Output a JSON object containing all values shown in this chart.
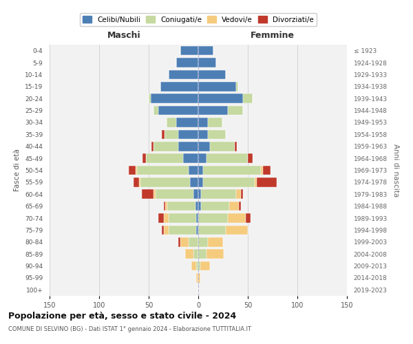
{
  "age_groups": [
    "0-4",
    "5-9",
    "10-14",
    "15-19",
    "20-24",
    "25-29",
    "30-34",
    "35-39",
    "40-44",
    "45-49",
    "50-54",
    "55-59",
    "60-64",
    "65-69",
    "70-74",
    "75-79",
    "80-84",
    "85-89",
    "90-94",
    "95-99",
    "100+"
  ],
  "birth_years": [
    "2019-2023",
    "2014-2018",
    "2009-2013",
    "2004-2008",
    "1999-2003",
    "1994-1998",
    "1989-1993",
    "1984-1988",
    "1979-1983",
    "1974-1978",
    "1969-1973",
    "1964-1968",
    "1959-1963",
    "1954-1958",
    "1949-1953",
    "1944-1948",
    "1939-1943",
    "1934-1938",
    "1929-1933",
    "1924-1928",
    "≤ 1923"
  ],
  "male": {
    "celibi": [
      18,
      22,
      30,
      38,
      48,
      40,
      22,
      20,
      20,
      15,
      10,
      8,
      5,
      3,
      2,
      2,
      0,
      0,
      0,
      0,
      0
    ],
    "coniugati": [
      0,
      0,
      0,
      0,
      2,
      5,
      10,
      14,
      25,
      38,
      52,
      50,
      38,
      28,
      28,
      28,
      10,
      5,
      2,
      0,
      0
    ],
    "vedovi": [
      0,
      0,
      0,
      0,
      0,
      0,
      0,
      0,
      0,
      0,
      1,
      2,
      2,
      2,
      5,
      5,
      8,
      8,
      5,
      2,
      0
    ],
    "divorziati": [
      0,
      0,
      0,
      0,
      0,
      0,
      0,
      3,
      2,
      3,
      7,
      5,
      12,
      2,
      5,
      2,
      2,
      0,
      0,
      0,
      0
    ]
  },
  "female": {
    "nubili": [
      15,
      18,
      28,
      38,
      45,
      30,
      10,
      10,
      12,
      8,
      5,
      5,
      3,
      3,
      0,
      0,
      0,
      0,
      0,
      0,
      0
    ],
    "coniugate": [
      0,
      0,
      0,
      2,
      10,
      15,
      14,
      18,
      25,
      42,
      58,
      52,
      35,
      28,
      30,
      28,
      10,
      8,
      2,
      0,
      0
    ],
    "vedove": [
      0,
      0,
      0,
      0,
      0,
      0,
      0,
      0,
      0,
      0,
      2,
      2,
      5,
      10,
      18,
      22,
      15,
      18,
      10,
      2,
      0
    ],
    "divorziate": [
      0,
      0,
      0,
      0,
      0,
      0,
      0,
      0,
      2,
      5,
      8,
      20,
      2,
      2,
      5,
      0,
      0,
      0,
      0,
      0,
      0
    ]
  },
  "colors": {
    "celibi": "#4d7fb5",
    "coniugati": "#c5d9a0",
    "vedovi": "#f5cb7e",
    "divorziati": "#c0392b"
  },
  "xlim": 150,
  "title": "Popolazione per età, sesso e stato civile - 2024",
  "subtitle": "COMUNE DI SELVINO (BG) - Dati ISTAT 1° gennaio 2024 - Elaborazione TUTTITALIA.IT",
  "ylabel_left": "Fasce di età",
  "ylabel_right": "Anni di nascita",
  "xlabel_left": "Maschi",
  "xlabel_right": "Femmine",
  "legend_labels": [
    "Celibi/Nubili",
    "Coniugati/e",
    "Vedovi/e",
    "Divorziati/e"
  ],
  "bg_color": "#f2f2f2",
  "grid_color": "#cccccc"
}
